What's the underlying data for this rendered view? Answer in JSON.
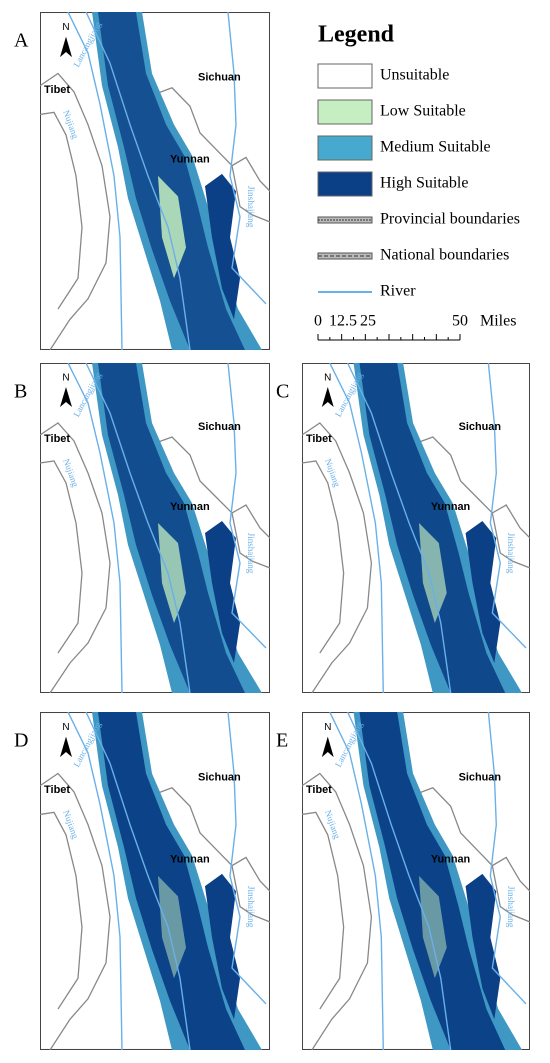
{
  "legend": {
    "title": "Legend",
    "items": [
      "Unsuitable",
      "Low Suitable",
      "Medium Suitable",
      "High Suitable",
      "Provincial boundaries",
      "National boundaries",
      "River"
    ]
  },
  "scale_bar": {
    "ticks": [
      "0",
      "12.5",
      "25",
      "50"
    ],
    "unit": "Miles"
  },
  "panels": [
    {
      "label": "A",
      "north": "N",
      "regions": [
        "Tibet",
        "Sichuan",
        "Yunnan"
      ],
      "rivers": [
        "Lancangjiang",
        "Nujiang",
        "Jinshajiang"
      ]
    },
    {
      "label": "B",
      "north": "N",
      "regions": [
        "Tibet",
        "Sichuan",
        "Yunnan"
      ],
      "rivers": [
        "Lancangjiang",
        "Nujiang",
        "Jinshajiang"
      ]
    },
    {
      "label": "C",
      "north": "N",
      "regions": [
        "Tibet",
        "Sichuan",
        "Yunnan"
      ],
      "rivers": [
        "Lancangjiang",
        "Nujiang",
        "Jinshajiang"
      ]
    },
    {
      "label": "D",
      "north": "N",
      "regions": [
        "Tibet",
        "Sichuan",
        "Yunnan"
      ],
      "rivers": [
        "Lancangjiang",
        "Nujiang",
        "Jinshajiang"
      ]
    },
    {
      "label": "E",
      "north": "N",
      "regions": [
        "Tibet",
        "Sichuan",
        "Yunnan"
      ],
      "rivers": [
        "Lancangjiang",
        "Nujiang",
        "Jinshajiang"
      ]
    }
  ]
}
